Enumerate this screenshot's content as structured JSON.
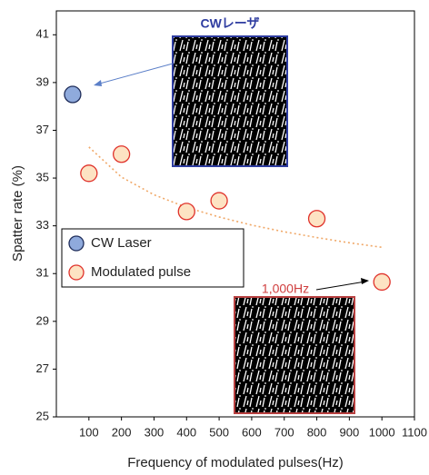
{
  "chart_data": {
    "type": "scatter",
    "x_label": "Frequency of modulated pulses(Hz)",
    "y_label": "Spatter rate (%)",
    "xlim": [
      0,
      1100
    ],
    "ylim": [
      25,
      42
    ],
    "xticks": [
      100,
      200,
      300,
      400,
      500,
      600,
      700,
      800,
      900,
      1000,
      1100
    ],
    "yticks": [
      25,
      27,
      29,
      31,
      33,
      35,
      37,
      39,
      41
    ],
    "grid": false,
    "legend_position": "lower left",
    "series": [
      {
        "name": "CW Laser",
        "color": "#8faadc",
        "edge_color": "#1f2d5a",
        "x": [
          50
        ],
        "values": [
          38.5
        ]
      },
      {
        "name": "Modulated pulse",
        "color": "#fde3c3",
        "edge_color": "#e0322b",
        "x": [
          100,
          200,
          400,
          500,
          800,
          1000
        ],
        "values": [
          35.2,
          36.0,
          33.6,
          34.05,
          33.3,
          30.65
        ]
      }
    ],
    "trendline": {
      "color": "#f0a868",
      "x": [
        100,
        200,
        300,
        400,
        500,
        600,
        700,
        800,
        900,
        1000
      ],
      "values": [
        36.3,
        35.04,
        34.3,
        33.77,
        33.37,
        33.03,
        32.75,
        32.51,
        32.29,
        32.1
      ]
    },
    "annotations": [
      {
        "text": "CWレーザ",
        "color": "#2e3ca0"
      },
      {
        "text": "1,000Hz",
        "color": "#d04040"
      }
    ]
  }
}
